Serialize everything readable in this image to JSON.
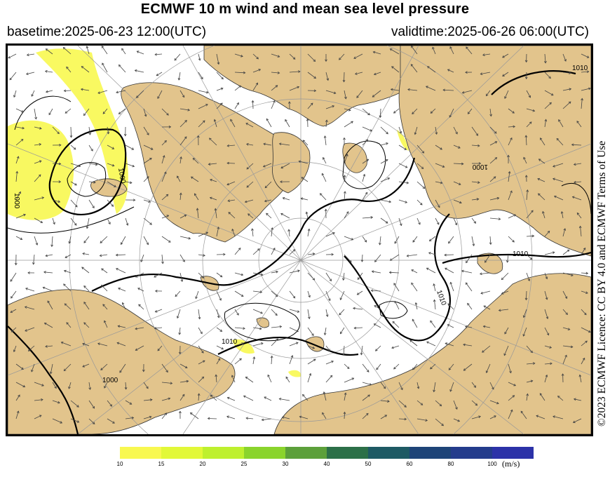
{
  "header": {
    "title": "ECMWF 10 m wind and mean sea level pressure",
    "basetime": "basetime:2025-06-23 12:00(UTC)",
    "validtime": "validtime:2025-06-26 06:00(UTC)"
  },
  "licence": "©2023 ECMWF Licence: CC BY 4.0 and ECMWF Terms of Use",
  "map": {
    "land_color": "#e2c48c",
    "ocean_color": "#ffffff",
    "isobar_labels": [
      "1000",
      "1010",
      "1000",
      "1010",
      "1010",
      "1000",
      "1010",
      "1000"
    ]
  },
  "legend": {
    "unit": "(m/s)",
    "ticks": [
      "10",
      "15",
      "20",
      "25",
      "30",
      "40",
      "50",
      "60",
      "80",
      "100"
    ],
    "colors": [
      "#f8f850",
      "#e2f838",
      "#bef02e",
      "#8ad42c",
      "#5ca03a",
      "#2c7048",
      "#1e5a64",
      "#1e4478",
      "#243c8c",
      "#2c32a8"
    ]
  }
}
